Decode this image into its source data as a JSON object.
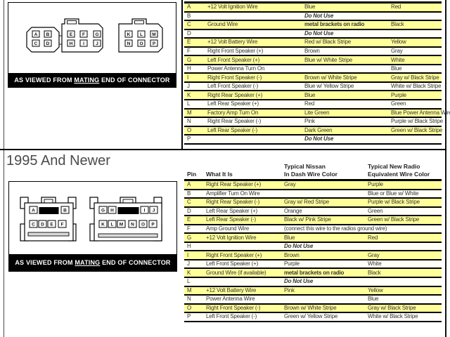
{
  "page": {
    "heading": "1995 And Newer",
    "connector_caption": {
      "pre": "AS VIEWED FROM ",
      "underline": "MATING",
      "post": " END OF CONNECTOR"
    },
    "colors": {
      "row_highlight": "#FFFF99",
      "caption_bar": "#000000",
      "line": "#000000"
    }
  },
  "diagrams": {
    "top": {
      "connector1_pins": [
        "A",
        "B",
        "C",
        "D"
      ],
      "connector2_pins": [
        "E",
        "F",
        "G",
        "H",
        "I",
        "J"
      ],
      "connector3_pins": [
        "K",
        "L",
        "M",
        "N",
        "O",
        "P"
      ]
    },
    "bottom": {
      "connector1_pins": [
        "A",
        "B",
        "C",
        "D",
        "E",
        "F"
      ],
      "connector2_pins": [
        "G",
        "H",
        "I",
        "J",
        "K",
        "L",
        "M",
        "N",
        "O",
        "P"
      ]
    }
  },
  "tables": {
    "top": {
      "rows": [
        {
          "pin": "A",
          "what": "+12 Volt Ignition Wire",
          "dash": "Blue",
          "radio": "Red"
        },
        {
          "pin": "B",
          "what": "",
          "dash": "Do Not Use",
          "radio": "",
          "dnu": true
        },
        {
          "pin": "C",
          "what": "Ground Wire",
          "dash": "metal brackets on radio",
          "radio": "Black",
          "b": true
        },
        {
          "pin": "D",
          "what": "",
          "dash": "Do Not Use",
          "radio": "",
          "dnu": true
        },
        {
          "pin": "E",
          "what": "+12 Volt Battery Wire",
          "dash": "Red w/ Black Stripe",
          "radio": "Yellow"
        },
        {
          "pin": "F",
          "what": "Right Front Speaker (+)",
          "dash": "Brown",
          "radio": "Gray"
        },
        {
          "pin": "G",
          "what": "Left Front Speaker (+)",
          "dash": "Blue w/ White Stripe",
          "radio": "White"
        },
        {
          "pin": "H",
          "what": "Power Antenna Turn On",
          "dash": "",
          "radio": "Blue"
        },
        {
          "pin": "I",
          "what": "Right Front Speaker (-)",
          "dash": "Brown w/ White Stripe",
          "radio": "Gray w/ Black Stripe"
        },
        {
          "pin": "J",
          "what": "Left Front Speaker (-)",
          "dash": "Blue w/ Yellow Stripe",
          "radio": "White w/ Black Stripe"
        },
        {
          "pin": "K",
          "what": "Right Rear Speaker (+)",
          "dash": "Blue",
          "radio": "Purple"
        },
        {
          "pin": "L",
          "what": "Left Rear Speaker (+)",
          "dash": "Red",
          "radio": "Green"
        },
        {
          "pin": "M",
          "what": "Factory Amp Turn On",
          "dash": "Lite Green",
          "radio": "Blue Power Antenna Wire"
        },
        {
          "pin": "N",
          "what": "Right Rear Speaker (-)",
          "dash": "Pink",
          "radio": "Purple w/ Black Stripe"
        },
        {
          "pin": "O",
          "what": "Left Rear Speaker (-)",
          "dash": "Dark Green",
          "radio": "Green w/ Black Stripe"
        },
        {
          "pin": "P",
          "what": "",
          "dash": "Do Not Use",
          "radio": "",
          "dnu": true
        }
      ]
    },
    "bottom": {
      "headers": {
        "pin": "Pin",
        "what": "What It Is",
        "dash1": "Typical Nissan",
        "dash2": "In Dash Wire Color",
        "radio1": "Typical New Radio",
        "radio2": "Equivalent Wire Color"
      },
      "rows": [
        {
          "pin": "A",
          "what": "Right Rear Speaker (+)",
          "dash": "Gray",
          "radio": "Purple"
        },
        {
          "pin": "B",
          "what": "Amplifier Turn On Wire",
          "dash": "",
          "radio": "Blue or Blue w/ White"
        },
        {
          "pin": "C",
          "what": "Right Rear Speaker (-)",
          "dash": "Gray w/ Red Stripe",
          "radio": "Purple w/ Black Stripe"
        },
        {
          "pin": "D",
          "what": "Left Rear Speaker (+)",
          "dash": "Orange",
          "radio": "Green"
        },
        {
          "pin": "E",
          "what": "Left Rear Speaker (-)",
          "dash": "Black w/ Pink Stripe",
          "radio": "Green w/ Black Stripe"
        },
        {
          "pin": "F",
          "what": "Amp Ground Wire",
          "dash": "(connect this wire to the radios ground wire)",
          "radio": ""
        },
        {
          "pin": "G",
          "what": "+12 Volt Ignition Wire",
          "dash": "Blue",
          "radio": "Red"
        },
        {
          "pin": "H",
          "what": "",
          "dash": "Do Not Use",
          "radio": "",
          "dnu": true
        },
        {
          "pin": "I",
          "what": "Right Front Speaker (+)",
          "dash": "Brown",
          "radio": "Gray"
        },
        {
          "pin": "J",
          "what": "Left Front Speaker (+)",
          "dash": "Purple",
          "radio": "White"
        },
        {
          "pin": "K",
          "what": "Ground Wire (if available)",
          "dash": "metal brackets on radio",
          "radio": "Black",
          "b": true
        },
        {
          "pin": "L",
          "what": "",
          "dash": "Do Not Use",
          "radio": "",
          "dnu": true
        },
        {
          "pin": "M",
          "what": "+12 Volt Battery Wire",
          "dash": "Pink",
          "radio": "Yellow"
        },
        {
          "pin": "N",
          "what": "Power Antenna Wire",
          "dash": "",
          "radio": "Blue"
        },
        {
          "pin": "O",
          "what": "Right Front Speaker (-)",
          "dash": "Brown w/ White Stripe",
          "radio": "Gray w/ Black Stripe"
        },
        {
          "pin": "P",
          "what": "Left Front Speaker (-)",
          "dash": "Green w/ Yellow Stripe",
          "radio": "White w/ Black Stripe"
        }
      ]
    }
  }
}
